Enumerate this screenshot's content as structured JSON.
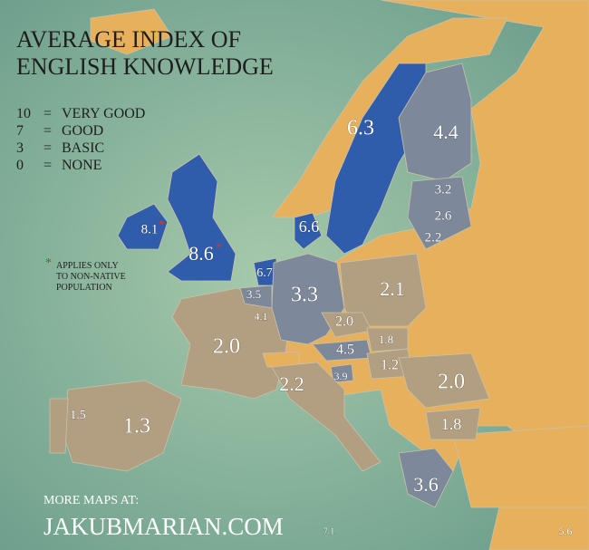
{
  "header": {
    "title": [
      "AVERAGE INDEX OF",
      "ENGLISH KNOWLEDGE"
    ]
  },
  "legend": [
    {
      "score": "10",
      "sign": "=",
      "meaning": "VERY GOOD"
    },
    {
      "score": "7",
      "sign": "=",
      "meaning": "GOOD"
    },
    {
      "score": "3",
      "sign": "=",
      "meaning": "BASIC"
    },
    {
      "score": "0",
      "sign": "=",
      "meaning": "NONE"
    }
  ],
  "note": {
    "mark": "*",
    "lines": [
      "APPLIES ONLY",
      "TO NON-NATIVE",
      "POPULATION"
    ]
  },
  "regions": [
    {
      "label": "6.3"
    },
    {
      "label": "4.4"
    },
    {
      "label": "3.2"
    },
    {
      "label": "2.6"
    },
    {
      "label": "2.2"
    },
    {
      "label": "6.6"
    },
    {
      "label": "8.1",
      "mark": "*"
    },
    {
      "label": "8.6",
      "mark": "*"
    },
    {
      "label": "6.7"
    },
    {
      "label": "3.5"
    },
    {
      "label": "4.1"
    },
    {
      "label": "3.3"
    },
    {
      "label": "2.1"
    },
    {
      "label": "2.0"
    },
    {
      "label": "1.8"
    },
    {
      "label": "4.5"
    },
    {
      "label": "2.0"
    },
    {
      "label": "3.9"
    },
    {
      "label": "1.2"
    },
    {
      "label": "2.0"
    },
    {
      "label": "2.2"
    },
    {
      "label": "1.5"
    },
    {
      "label": "1.3"
    },
    {
      "label": "1.8"
    },
    {
      "label": "3.6"
    },
    {
      "label": "7.1"
    },
    {
      "label": "5.6"
    }
  ],
  "footer": {
    "line1": "MORE MAPS AT:",
    "line2": "JAKUBMARIAN.COM"
  }
}
